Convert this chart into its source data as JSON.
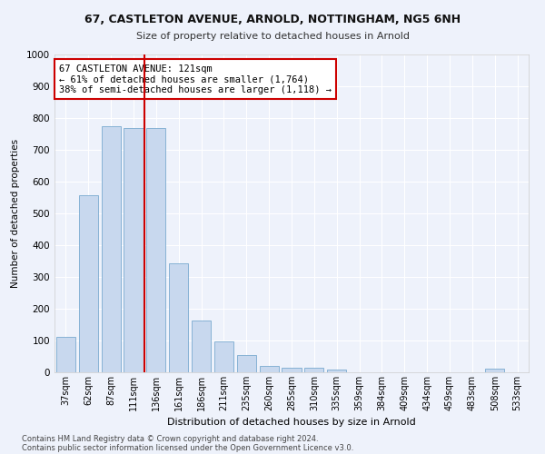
{
  "title1": "67, CASTLETON AVENUE, ARNOLD, NOTTINGHAM, NG5 6NH",
  "title2": "Size of property relative to detached houses in Arnold",
  "xlabel": "Distribution of detached houses by size in Arnold",
  "ylabel": "Number of detached properties",
  "bar_color": "#c8d8ee",
  "bar_edge_color": "#7aaad0",
  "vline_color": "#cc0000",
  "vline_x": 3.5,
  "annotation_title": "67 CASTLETON AVENUE: 121sqm",
  "annotation_line2": "← 61% of detached houses are smaller (1,764)",
  "annotation_line3": "38% of semi-detached houses are larger (1,118) →",
  "annotation_box_edgecolor": "#cc0000",
  "categories": [
    "37sqm",
    "62sqm",
    "87sqm",
    "111sqm",
    "136sqm",
    "161sqm",
    "186sqm",
    "211sqm",
    "235sqm",
    "260sqm",
    "285sqm",
    "310sqm",
    "335sqm",
    "359sqm",
    "384sqm",
    "409sqm",
    "434sqm",
    "459sqm",
    "483sqm",
    "508sqm",
    "533sqm"
  ],
  "values": [
    112,
    558,
    775,
    770,
    770,
    343,
    163,
    98,
    55,
    20,
    15,
    14,
    10,
    0,
    0,
    0,
    0,
    0,
    0,
    12,
    0
  ],
  "ylim": [
    0,
    1000
  ],
  "yticks": [
    0,
    100,
    200,
    300,
    400,
    500,
    600,
    700,
    800,
    900,
    1000
  ],
  "footer1": "Contains HM Land Registry data © Crown copyright and database right 2024.",
  "footer2": "Contains public sector information licensed under the Open Government Licence v3.0.",
  "bg_color": "#eef2fb",
  "grid_color": "#ffffff"
}
